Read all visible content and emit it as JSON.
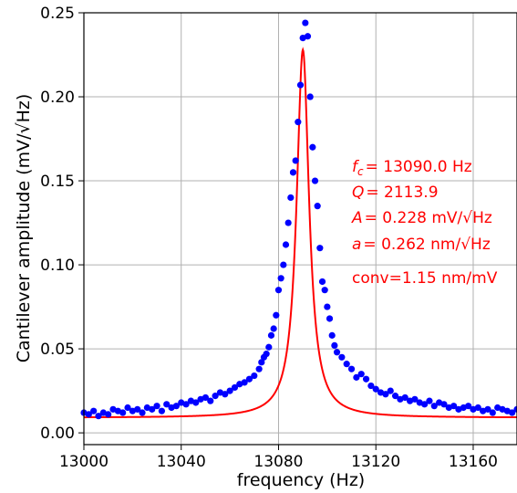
{
  "chart_data": {
    "type": "scatter",
    "xlabel": "frequency (Hz)",
    "ylabel": "Cantilever amplitude (mV/√Hz)",
    "xlim": [
      13000,
      13178
    ],
    "ylim": [
      -0.007,
      0.25
    ],
    "x_ticks": [
      13000,
      13040,
      13080,
      13120,
      13160
    ],
    "y_ticks": [
      0.0,
      0.05,
      0.1,
      0.15,
      0.2,
      0.25
    ],
    "x_tick_labels": [
      "13000",
      "13040",
      "13080",
      "13120",
      "13160"
    ],
    "y_tick_labels": [
      "0.00",
      "0.05",
      "0.10",
      "0.15",
      "0.20",
      "0.25"
    ],
    "grid": true,
    "series": [
      {
        "kind": "points",
        "color": "#0000ff",
        "x": [
          13000,
          13002,
          13004,
          13006,
          13008,
          13010,
          13012,
          13014,
          13016,
          13018,
          13020,
          13022,
          13024,
          13026,
          13028,
          13030,
          13032,
          13034,
          13036,
          13038,
          13040,
          13042,
          13044,
          13046,
          13048,
          13050,
          13052,
          13054,
          13056,
          13058,
          13060,
          13062,
          13064,
          13066,
          13068,
          13070,
          13072,
          13073,
          13074,
          13075,
          13076,
          13077,
          13078,
          13079,
          13080,
          13081,
          13082,
          13083,
          13084,
          13085,
          13086,
          13087,
          13088,
          13089,
          13090,
          13091,
          13092,
          13093,
          13094,
          13095,
          13096,
          13097,
          13098,
          13099,
          13100,
          13101,
          13102,
          13103,
          13104,
          13106,
          13108,
          13110,
          13112,
          13114,
          13116,
          13118,
          13120,
          13122,
          13124,
          13126,
          13128,
          13130,
          13132,
          13134,
          13136,
          13138,
          13140,
          13142,
          13144,
          13146,
          13148,
          13150,
          13152,
          13154,
          13156,
          13158,
          13160,
          13162,
          13164,
          13166,
          13168,
          13170,
          13172,
          13174,
          13176,
          13178
        ],
        "y": [
          0.012,
          0.011,
          0.013,
          0.01,
          0.012,
          0.011,
          0.014,
          0.013,
          0.012,
          0.015,
          0.013,
          0.014,
          0.012,
          0.015,
          0.014,
          0.016,
          0.013,
          0.017,
          0.015,
          0.016,
          0.018,
          0.017,
          0.019,
          0.018,
          0.02,
          0.021,
          0.019,
          0.022,
          0.024,
          0.023,
          0.025,
          0.027,
          0.029,
          0.03,
          0.032,
          0.034,
          0.038,
          0.042,
          0.045,
          0.047,
          0.051,
          0.058,
          0.062,
          0.07,
          0.085,
          0.092,
          0.1,
          0.112,
          0.125,
          0.14,
          0.155,
          0.162,
          0.185,
          0.207,
          0.235,
          0.244,
          0.236,
          0.2,
          0.17,
          0.15,
          0.135,
          0.11,
          0.09,
          0.085,
          0.075,
          0.068,
          0.058,
          0.052,
          0.048,
          0.045,
          0.041,
          0.038,
          0.033,
          0.035,
          0.032,
          0.028,
          0.026,
          0.024,
          0.023,
          0.025,
          0.022,
          0.02,
          0.021,
          0.019,
          0.02,
          0.018,
          0.017,
          0.019,
          0.016,
          0.018,
          0.017,
          0.015,
          0.016,
          0.014,
          0.015,
          0.016,
          0.014,
          0.015,
          0.013,
          0.014,
          0.012,
          0.015,
          0.014,
          0.013,
          0.012,
          0.014
        ]
      },
      {
        "kind": "fit-line",
        "color": "#ff0000",
        "model": "lorentzian",
        "f_c": 13090.0,
        "Q": 2113.9,
        "A": 0.228,
        "background": 0.009
      }
    ],
    "annotations": [
      {
        "label": "f",
        "sub": "c",
        "value": "= 13090.0 Hz"
      },
      {
        "label": "Q",
        "value": "= 2113.9"
      },
      {
        "label": "A",
        "value": "= 0.228 mV/√Hz"
      },
      {
        "label": "a",
        "value": "= 0.262 nm/√Hz"
      },
      {
        "label": "",
        "value": "conv=1.15 nm/mV"
      }
    ]
  }
}
